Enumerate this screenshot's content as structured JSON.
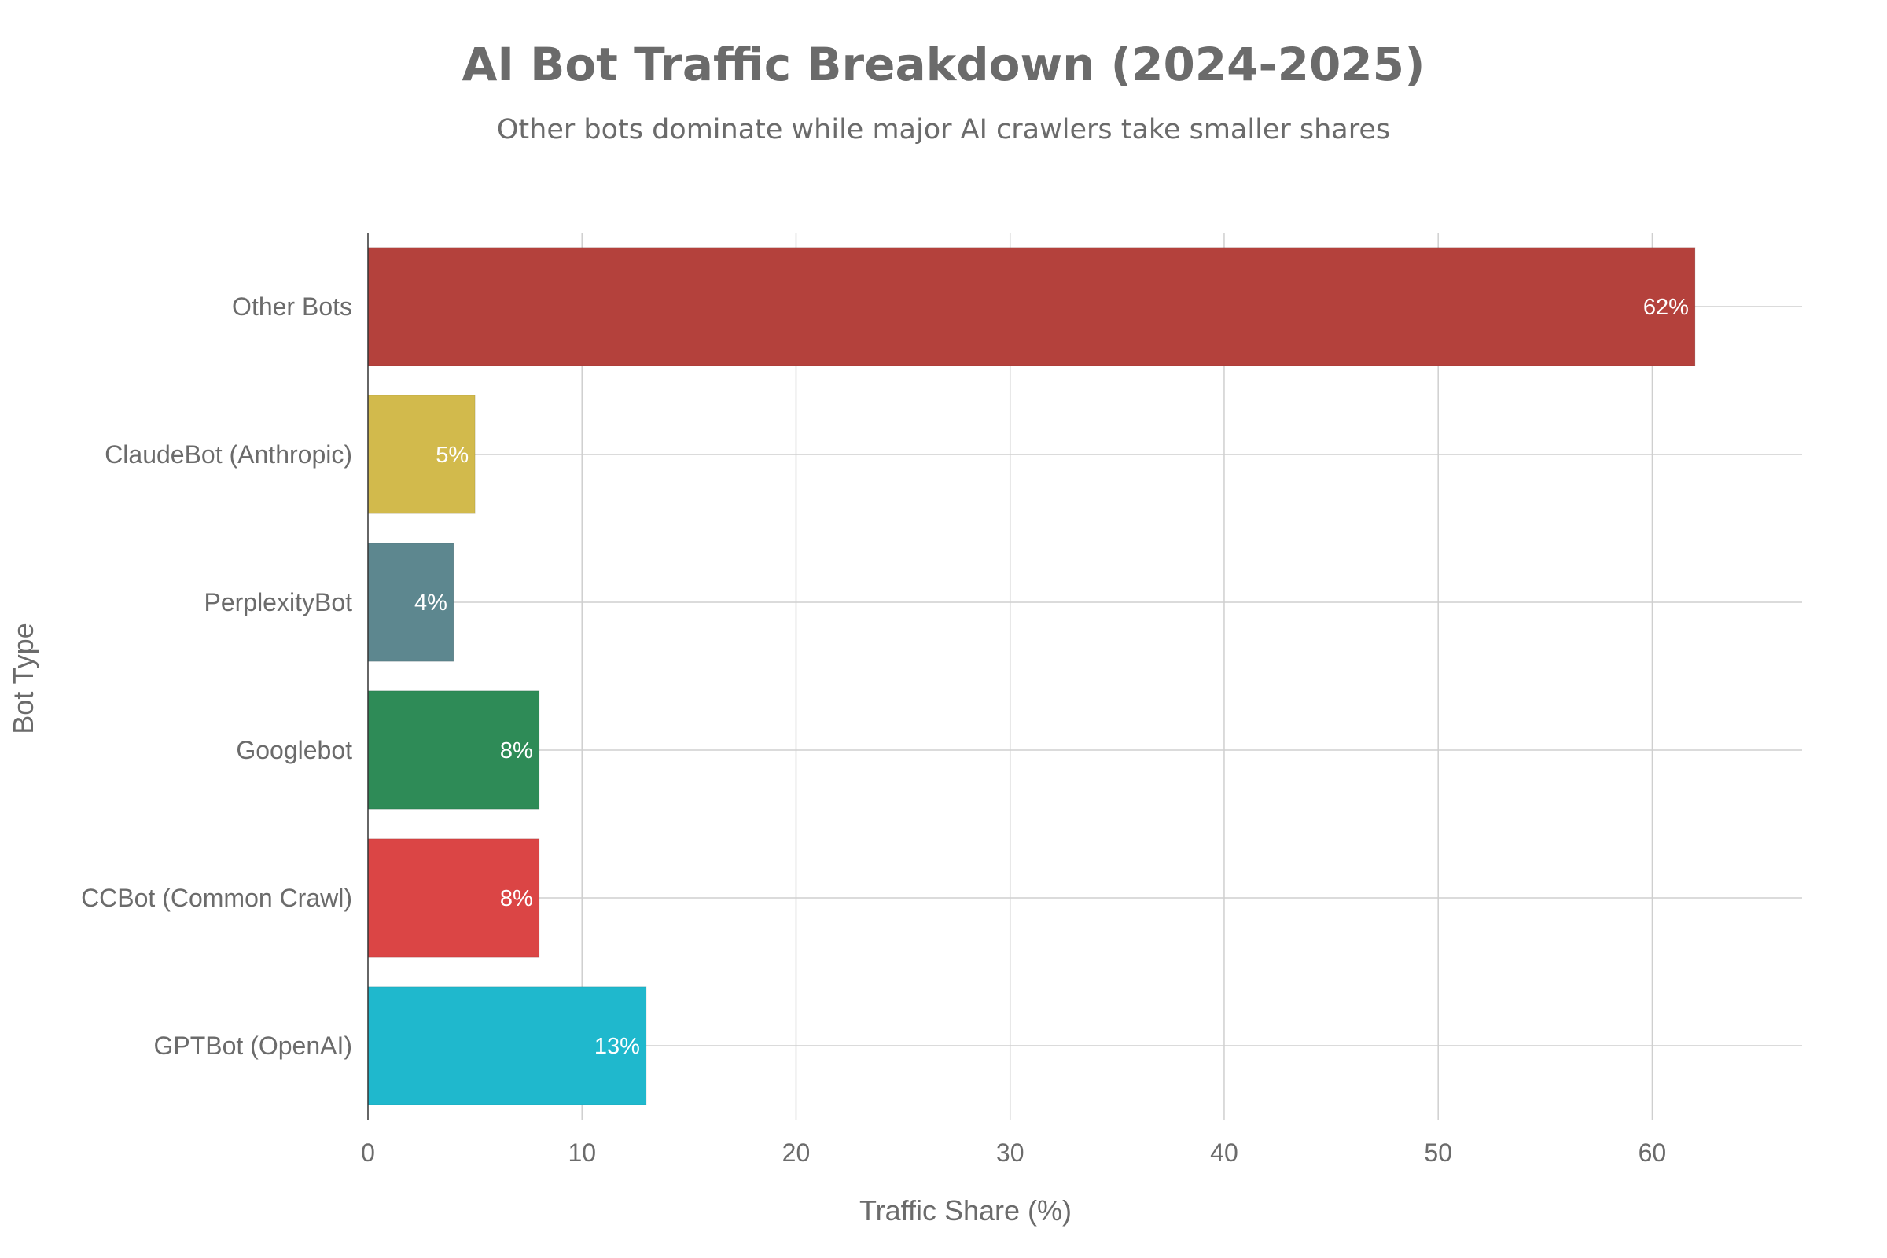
{
  "chart_data": {
    "type": "bar",
    "orientation": "horizontal",
    "title": "AI Bot Traffic Breakdown (2024-2025)",
    "subtitle": "Other bots dominate while major AI crawlers take smaller shares",
    "xlabel": "Traffic Share (%)",
    "ylabel": "Bot Type",
    "xlim": [
      0,
      67
    ],
    "xticks": [
      0,
      10,
      20,
      30,
      40,
      50,
      60
    ],
    "grid": true,
    "categories": [
      "GPTBot (OpenAI)",
      "CCBot (Common Crawl)",
      "Googlebot",
      "PerplexityBot",
      "ClaudeBot (Anthropic)",
      "Other Bots"
    ],
    "values": [
      13,
      8,
      8,
      4,
      5,
      62
    ],
    "data_labels": [
      "13%",
      "8%",
      "8%",
      "4%",
      "5%",
      "62%"
    ],
    "colors": [
      "#1fb8cd",
      "#db4545",
      "#2e8b57",
      "#5d878f",
      "#d2ba4c",
      "#b4413c"
    ]
  }
}
